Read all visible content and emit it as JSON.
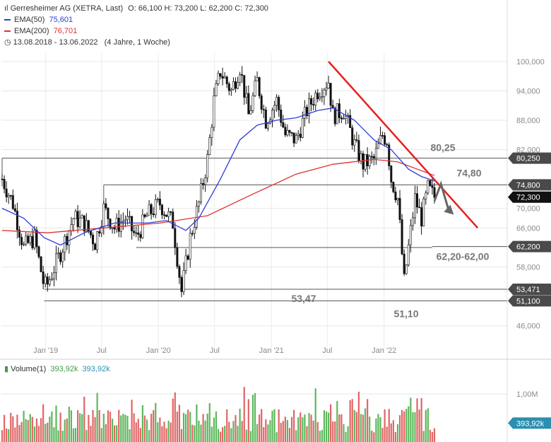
{
  "header": {
    "title": "Gerresheimer AG (XETRA, Last)",
    "ohlc": "O: 66,100  H: 73,200  L: 62,200  C: 72,300",
    "ema50": {
      "label": "EMA(50)",
      "value": "75,601",
      "color": "#2b3fd6"
    },
    "ema200": {
      "label": "EMA(200)",
      "value": "76,701",
      "color": "#e03131"
    },
    "range": "13.08.2018 - 13.06.2022",
    "range_hint": "(4 Jahre, 1 Woche)"
  },
  "volume_header": {
    "label": "Volume(1)",
    "value1": "393,92k",
    "value2": "393,92k"
  },
  "chart_data": {
    "type": "candlestick",
    "x_range": [
      "2018-08-13",
      "2022-06-13"
    ],
    "y_range": [
      44,
      104
    ],
    "y_ticks": [
      {
        "v": 100,
        "label": "100,000"
      },
      {
        "v": 94,
        "label": "94,000"
      },
      {
        "v": 88,
        "label": "88,000"
      },
      {
        "v": 82,
        "label": "82,000"
      },
      {
        "v": 70,
        "label": "70,000"
      },
      {
        "v": 66,
        "label": "66,000"
      },
      {
        "v": 58,
        "label": "58,000"
      },
      {
        "v": 46,
        "label": "46,000"
      }
    ],
    "x_ticks": [
      {
        "date": "2019-01-01",
        "label": "Jan '19"
      },
      {
        "date": "2019-07-01",
        "label": "Jul"
      },
      {
        "date": "2020-01-01",
        "label": "Jan '20"
      },
      {
        "date": "2020-07-01",
        "label": "Jul"
      },
      {
        "date": "2021-01-01",
        "label": "Jan '21"
      },
      {
        "date": "2021-07-01",
        "label": "Jul"
      },
      {
        "date": "2022-01-01",
        "label": "Jan '22"
      }
    ],
    "closes": [
      {
        "date": "2018-08-13",
        "v": 76.0
      },
      {
        "date": "2018-09-17",
        "v": 71.0
      },
      {
        "date": "2018-10-22",
        "v": 62.0
      },
      {
        "date": "2018-11-26",
        "v": 64.0
      },
      {
        "date": "2018-12-27",
        "v": 54.0
      },
      {
        "date": "2019-01-07",
        "v": 54.5
      },
      {
        "date": "2019-02-18",
        "v": 61.0
      },
      {
        "date": "2019-04-01",
        "v": 68.0
      },
      {
        "date": "2019-05-06",
        "v": 67.0
      },
      {
        "date": "2019-06-10",
        "v": 63.0
      },
      {
        "date": "2019-07-08",
        "v": 70.0
      },
      {
        "date": "2019-08-12",
        "v": 66.0
      },
      {
        "date": "2019-09-16",
        "v": 68.0
      },
      {
        "date": "2019-10-21",
        "v": 64.0
      },
      {
        "date": "2019-11-25",
        "v": 68.5
      },
      {
        "date": "2020-01-06",
        "v": 71.0
      },
      {
        "date": "2020-02-17",
        "v": 67.0
      },
      {
        "date": "2020-03-16",
        "v": 53.0
      },
      {
        "date": "2020-04-13",
        "v": 64.0
      },
      {
        "date": "2020-05-11",
        "v": 71.0
      },
      {
        "date": "2020-06-08",
        "v": 80.0
      },
      {
        "date": "2020-06-29",
        "v": 92.0
      },
      {
        "date": "2020-07-20",
        "v": 98.0
      },
      {
        "date": "2020-08-24",
        "v": 94.0
      },
      {
        "date": "2020-09-21",
        "v": 99.0
      },
      {
        "date": "2020-10-19",
        "v": 89.0
      },
      {
        "date": "2020-11-16",
        "v": 96.0
      },
      {
        "date": "2020-12-14",
        "v": 88.0
      },
      {
        "date": "2021-01-18",
        "v": 92.0
      },
      {
        "date": "2021-02-15",
        "v": 85.0
      },
      {
        "date": "2021-03-22",
        "v": 84.0
      },
      {
        "date": "2021-04-26",
        "v": 90.0
      },
      {
        "date": "2021-05-31",
        "v": 94.0
      },
      {
        "date": "2021-07-05",
        "v": 96.0
      },
      {
        "date": "2021-07-19",
        "v": 89.0
      },
      {
        "date": "2021-08-23",
        "v": 90.0
      },
      {
        "date": "2021-09-27",
        "v": 83.0
      },
      {
        "date": "2021-10-25",
        "v": 79.0
      },
      {
        "date": "2021-11-29",
        "v": 80.0
      },
      {
        "date": "2021-12-27",
        "v": 85.0
      },
      {
        "date": "2022-01-10",
        "v": 84.0
      },
      {
        "date": "2022-01-24",
        "v": 76.0
      },
      {
        "date": "2022-02-14",
        "v": 72.0
      },
      {
        "date": "2022-03-07",
        "v": 55.0
      },
      {
        "date": "2022-03-21",
        "v": 62.0
      },
      {
        "date": "2022-04-11",
        "v": 72.0
      },
      {
        "date": "2022-05-02",
        "v": 68.0
      },
      {
        "date": "2022-05-23",
        "v": 74.0
      },
      {
        "date": "2022-06-13",
        "v": 72.3
      }
    ],
    "ema50": [
      {
        "date": "2018-08-13",
        "v": 70.0
      },
      {
        "date": "2018-10-22",
        "v": 68.0
      },
      {
        "date": "2018-12-27",
        "v": 64.0
      },
      {
        "date": "2019-02-18",
        "v": 62.5
      },
      {
        "date": "2019-05-06",
        "v": 65.0
      },
      {
        "date": "2019-08-12",
        "v": 67.0
      },
      {
        "date": "2019-11-25",
        "v": 67.0
      },
      {
        "date": "2020-01-27",
        "v": 67.5
      },
      {
        "date": "2020-03-30",
        "v": 65.5
      },
      {
        "date": "2020-05-11",
        "v": 68.0
      },
      {
        "date": "2020-07-20",
        "v": 76.0
      },
      {
        "date": "2020-09-21",
        "v": 84.0
      },
      {
        "date": "2020-11-16",
        "v": 87.0
      },
      {
        "date": "2021-01-18",
        "v": 88.0
      },
      {
        "date": "2021-03-22",
        "v": 88.5
      },
      {
        "date": "2021-05-31",
        "v": 90.0
      },
      {
        "date": "2021-07-19",
        "v": 90.5
      },
      {
        "date": "2021-09-27",
        "v": 88.0
      },
      {
        "date": "2021-11-29",
        "v": 84.0
      },
      {
        "date": "2022-01-24",
        "v": 82.0
      },
      {
        "date": "2022-03-21",
        "v": 78.0
      },
      {
        "date": "2022-05-02",
        "v": 76.5
      },
      {
        "date": "2022-06-13",
        "v": 75.6
      }
    ],
    "ema200": [
      {
        "date": "2018-08-13",
        "v": 65.5
      },
      {
        "date": "2019-01-07",
        "v": 65.0
      },
      {
        "date": "2019-07-08",
        "v": 66.0
      },
      {
        "date": "2020-01-06",
        "v": 67.0
      },
      {
        "date": "2020-06-08",
        "v": 68.5
      },
      {
        "date": "2020-10-19",
        "v": 72.5
      },
      {
        "date": "2021-03-22",
        "v": 77.0
      },
      {
        "date": "2021-07-19",
        "v": 79.0
      },
      {
        "date": "2021-11-29",
        "v": 80.0
      },
      {
        "date": "2022-02-14",
        "v": 79.5
      },
      {
        "date": "2022-06-13",
        "v": 76.7
      }
    ],
    "levels": [
      {
        "v": 80.25,
        "label": "80,25",
        "tag": "80,250",
        "from": "2018-08-13"
      },
      {
        "v": 74.8,
        "label": "74,80",
        "tag": "74,800",
        "from": "2019-07-08"
      },
      {
        "v": 62.2,
        "label": "62,20-62,00",
        "tag": "62,200",
        "from": "2022-06-06"
      },
      {
        "v": 62.0,
        "from": "2019-10-21",
        "to": "2022-06-06"
      },
      {
        "v": 53.471,
        "label": "53,47",
        "tag": "53,471",
        "from": "2018-12-27"
      },
      {
        "v": 51.1,
        "label": "51,10",
        "tag": "51,100",
        "from": "2018-12-27"
      }
    ],
    "last": {
      "v": 72.3,
      "tag": "72,300"
    },
    "trendline": [
      {
        "date": "2021-07-05",
        "v": 100.0
      },
      {
        "date": "2022-10-31",
        "v": 66.0
      }
    ],
    "projection": [
      {
        "date": "2022-06-13",
        "v": 71.5
      },
      {
        "date": "2022-07-04",
        "v": 75.0
      },
      {
        "date": "2022-08-01",
        "v": 69.0
      }
    ],
    "volume": {
      "y_max": 1400000,
      "tick": {
        "v": 1000000,
        "label": "1,00M"
      },
      "last_tag": "393,92k",
      "note": "weekly volume, green = up week, red = down week"
    }
  }
}
